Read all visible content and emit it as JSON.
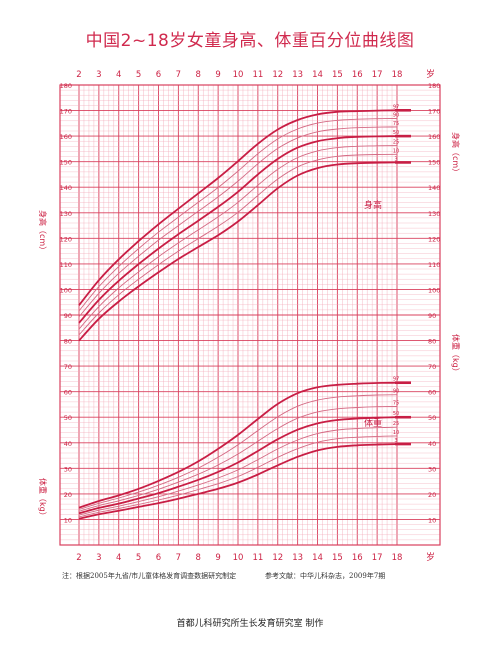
{
  "title": "中国2~18岁女童身高、体重百分位曲线图",
  "colors": {
    "grid_major": "#d9405e",
    "grid_minor": "#f2a7b6",
    "curve_main": "#c81e45",
    "curve_light": "#d46a84",
    "text": "#cc2244",
    "background": "#ffffff"
  },
  "chart_data": {
    "type": "line",
    "x_ticks": [
      "2",
      "3",
      "4",
      "5",
      "6",
      "7",
      "8",
      "9",
      "10",
      "11",
      "12",
      "13",
      "14",
      "15",
      "16",
      "17",
      "18"
    ],
    "x_unit": "岁",
    "left_ticks": [
      "180",
      "170",
      "160",
      "150",
      "140",
      "130",
      "120",
      "110",
      "100",
      "90",
      "80",
      "70",
      "60",
      "50",
      "40",
      "30",
      "20",
      "10"
    ],
    "right_ticks": [
      "180",
      "170",
      "160",
      "150",
      "140",
      "130",
      "120",
      "110",
      "100",
      "90",
      "80",
      "70",
      "60",
      "50",
      "40",
      "30",
      "20",
      "10"
    ],
    "height_axis_label": "身高（cm）",
    "weight_axis_label": "体重（kg）",
    "height_curve_label": "身高",
    "weight_curve_label": "体重",
    "x": [
      2,
      3,
      4,
      5,
      6,
      7,
      8,
      9,
      10,
      11,
      12,
      13,
      14,
      15,
      16,
      17,
      18
    ],
    "height": {
      "unit": "cm",
      "series": [
        {
          "name": "97",
          "values": [
            93.8,
            103.6,
            111.8,
            118.9,
            125.5,
            131.6,
            137.6,
            143.6,
            150.2,
            157.0,
            162.6,
            166.3,
            168.5,
            169.5,
            169.8,
            170.0,
            170.1
          ]
        },
        {
          "name": "90",
          "values": [
            91.6,
            101.1,
            109.0,
            116.0,
            122.4,
            128.3,
            134.1,
            139.9,
            146.3,
            153.1,
            158.9,
            162.8,
            165.1,
            166.2,
            166.6,
            166.8,
            166.9
          ]
        },
        {
          "name": "75",
          "values": [
            89.3,
            98.5,
            106.3,
            113.0,
            119.3,
            125.0,
            130.6,
            136.2,
            142.4,
            149.2,
            155.2,
            159.3,
            161.7,
            162.8,
            163.3,
            163.5,
            163.6
          ]
        },
        {
          "name": "50",
          "values": [
            86.9,
            95.9,
            103.4,
            109.9,
            116.0,
            121.6,
            126.9,
            132.3,
            138.2,
            145.0,
            151.1,
            155.5,
            158.0,
            159.2,
            159.7,
            159.9,
            160.0
          ]
        },
        {
          "name": "25",
          "values": [
            84.5,
            93.3,
            100.6,
            106.9,
            112.8,
            118.2,
            123.3,
            128.4,
            134.1,
            140.8,
            147.0,
            151.6,
            154.2,
            155.5,
            156.0,
            156.2,
            156.3
          ]
        },
        {
          "name": "10",
          "values": [
            82.2,
            90.8,
            97.9,
            104.0,
            109.7,
            115.0,
            119.9,
            124.7,
            130.2,
            136.8,
            143.2,
            148.0,
            150.7,
            152.1,
            152.6,
            152.8,
            152.9
          ]
        },
        {
          "name": "3",
          "values": [
            80.0,
            88.5,
            95.3,
            101.2,
            106.7,
            111.9,
            116.6,
            121.2,
            126.6,
            133.0,
            139.6,
            144.6,
            147.5,
            148.9,
            149.4,
            149.6,
            149.7
          ]
        }
      ]
    },
    "weight": {
      "unit": "kg",
      "series": [
        {
          "name": "97",
          "values": [
            14.6,
            17.2,
            19.4,
            22.0,
            25.1,
            28.6,
            32.7,
            37.6,
            43.1,
            49.3,
            55.2,
            59.4,
            61.7,
            62.7,
            63.1,
            63.4,
            63.5
          ]
        },
        {
          "name": "90",
          "values": [
            13.9,
            16.3,
            18.4,
            20.7,
            23.4,
            26.5,
            30.1,
            34.3,
            39.2,
            44.8,
            50.2,
            54.3,
            56.7,
            57.9,
            58.4,
            58.7,
            58.8
          ]
        },
        {
          "name": "75",
          "values": [
            13.2,
            15.4,
            17.3,
            19.4,
            21.8,
            24.6,
            27.7,
            31.3,
            35.6,
            40.6,
            45.6,
            49.6,
            52.1,
            53.3,
            53.8,
            54.1,
            54.2
          ]
        },
        {
          "name": "50",
          "values": [
            12.4,
            14.5,
            16.2,
            18.2,
            20.3,
            22.8,
            25.5,
            28.6,
            32.3,
            36.8,
            41.4,
            45.1,
            47.6,
            48.9,
            49.5,
            49.8,
            50.0
          ]
        },
        {
          "name": "25",
          "values": [
            11.7,
            13.6,
            15.2,
            17.0,
            18.9,
            21.1,
            23.5,
            26.2,
            29.4,
            33.4,
            37.6,
            41.1,
            43.6,
            45.0,
            45.6,
            45.9,
            46.1
          ]
        },
        {
          "name": "10",
          "values": [
            11.0,
            12.8,
            14.3,
            15.9,
            17.6,
            19.5,
            21.7,
            24.0,
            26.8,
            30.4,
            34.3,
            37.7,
            40.2,
            41.6,
            42.2,
            42.5,
            42.7
          ]
        },
        {
          "name": "3",
          "values": [
            10.3,
            12.0,
            13.4,
            14.9,
            16.4,
            18.1,
            20.0,
            22.0,
            24.4,
            27.6,
            31.2,
            34.5,
            37.0,
            38.4,
            39.0,
            39.3,
            39.5
          ]
        }
      ]
    }
  },
  "footer": {
    "note1": "注：根据2005年九省/市儿童体格发育调查数据研究制定",
    "note2": "参考文献：中华儿科杂志，2009年7期",
    "credit": "首都儿科研究所生长发育研究室  制作"
  }
}
